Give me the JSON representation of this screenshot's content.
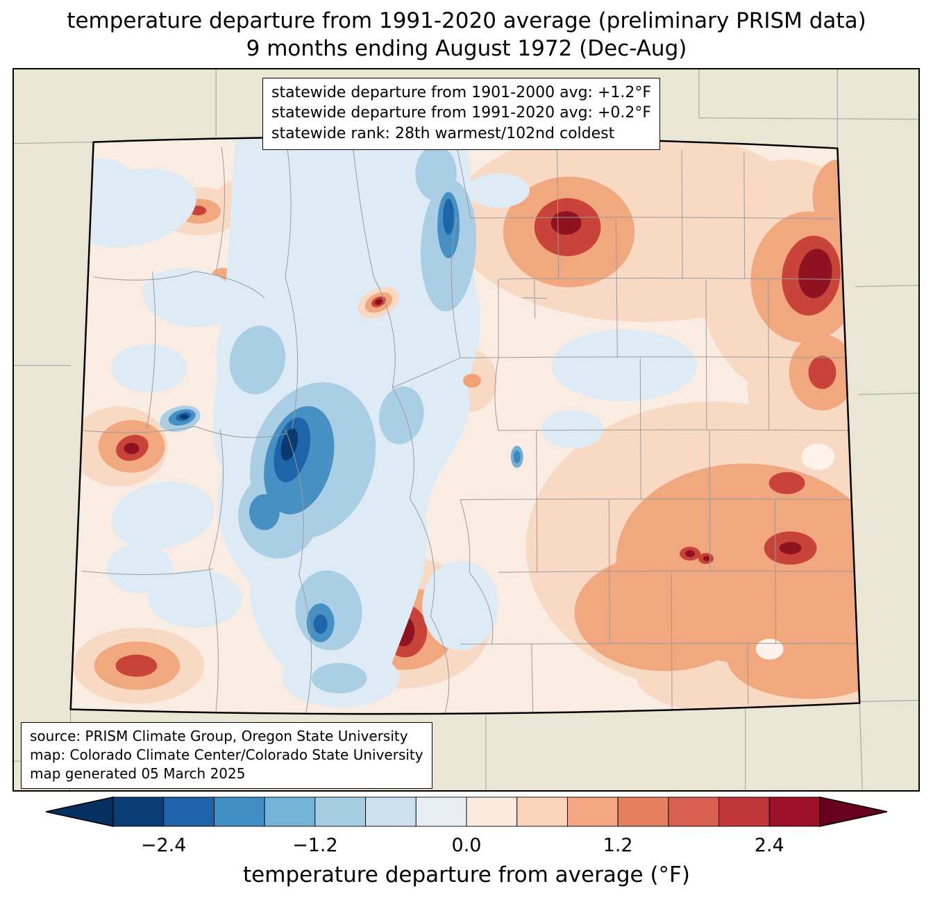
{
  "title": {
    "line1": "temperature departure from 1991-2020 average (preliminary PRISM data)",
    "line2": "9 months ending August 1972 (Dec-Aug)"
  },
  "stats_box": {
    "line1": "statewide departure from 1901-2000 avg: +1.2°F",
    "line2": "statewide departure from 1991-2020 avg: +0.2°F",
    "line3": "statewide rank: 28th warmest/102nd coldest"
  },
  "source_box": {
    "line1": "source: PRISM Climate Group, Oregon State University",
    "line2": "map: Colorado Climate Center/Colorado State University",
    "line3": "map generated 05 March 2025"
  },
  "colorbar": {
    "label": "temperature departure from average (°F)",
    "vmin": -2.8,
    "vmax": 2.8,
    "step": 0.4,
    "ticks": [
      {
        "value": -2.4,
        "label": "−2.4"
      },
      {
        "value": -1.2,
        "label": "−1.2"
      },
      {
        "value": 0.0,
        "label": "0.0"
      },
      {
        "value": 1.2,
        "label": "1.2"
      },
      {
        "value": 2.4,
        "label": "2.4"
      }
    ],
    "under_color": "#053061",
    "over_color": "#67001f",
    "segment_colors": [
      "#0b3d75",
      "#1f63a8",
      "#3f8ec4",
      "#74b2d8",
      "#a6cee3",
      "#cde0ee",
      "#e8eff4",
      "#fbeadd",
      "#f9d4ba",
      "#f4a582",
      "#e67f5d",
      "#d6604d",
      "#c03538",
      "#9c1127"
    ]
  },
  "map_colors": {
    "outside_land": "#e9e7d3",
    "county_line": "#9a9a9a",
    "state_border": "#000000",
    "frame_border": "#000000"
  }
}
